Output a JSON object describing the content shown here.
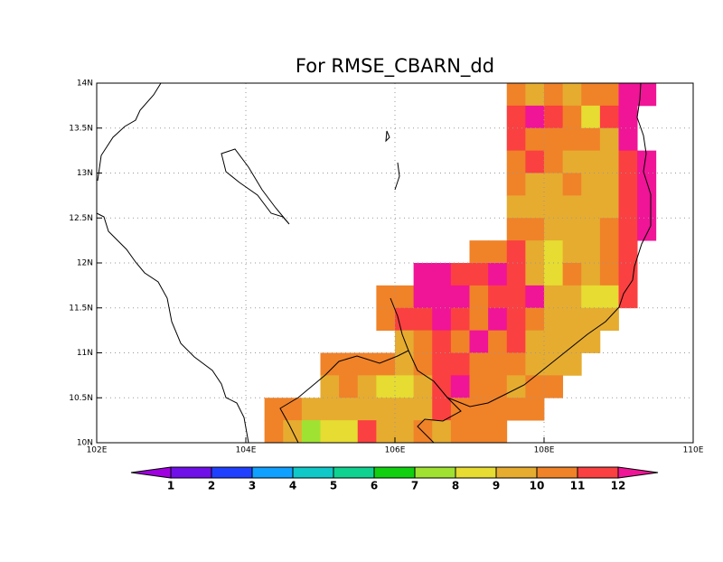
{
  "chart_data": {
    "type": "map",
    "title": "For RMSE_CBARN_dd",
    "xlim": [
      102,
      110
    ],
    "ylim": [
      10,
      14
    ],
    "xticks": [
      {
        "value": 102,
        "label": "102E"
      },
      {
        "value": 104,
        "label": "104E"
      },
      {
        "value": 106,
        "label": "106E"
      },
      {
        "value": 108,
        "label": "108E"
      },
      {
        "value": 110,
        "label": "110E"
      }
    ],
    "yticks": [
      {
        "value": 10,
        "label": "10N"
      },
      {
        "value": 10.5,
        "label": "10.5N"
      },
      {
        "value": 11,
        "label": "11N"
      },
      {
        "value": 11.5,
        "label": "11.5N"
      },
      {
        "value": 12,
        "label": "12N"
      },
      {
        "value": 12.5,
        "label": "12.5N"
      },
      {
        "value": 13,
        "label": "13N"
      },
      {
        "value": 13.5,
        "label": "13.5N"
      },
      {
        "value": 14,
        "label": "14N"
      }
    ],
    "grid": true,
    "x": [
      104.375,
      104.625,
      104.875,
      105.125,
      105.375,
      105.625,
      105.875,
      106.125,
      106.375,
      106.625,
      106.875,
      107.125,
      107.375,
      107.625,
      107.875,
      108.125,
      108.375,
      108.625,
      108.875,
      109.125,
      109.375
    ],
    "y": [
      13.875,
      13.625,
      13.375,
      13.125,
      12.875,
      12.625,
      12.375,
      12.125,
      11.875,
      11.625,
      11.375,
      11.125,
      10.875,
      10.625,
      10.375,
      10.125
    ],
    "values": [
      [
        null,
        null,
        null,
        null,
        null,
        null,
        null,
        null,
        null,
        null,
        null,
        null,
        null,
        10.5,
        9.5,
        10.5,
        9.5,
        10.5,
        10.5,
        12.5,
        12.5
      ],
      [
        null,
        null,
        null,
        null,
        null,
        null,
        null,
        null,
        null,
        null,
        null,
        null,
        null,
        11.5,
        12.5,
        11.5,
        10.5,
        8.5,
        11.5,
        12.5,
        null
      ],
      [
        null,
        null,
        null,
        null,
        null,
        null,
        null,
        null,
        null,
        null,
        null,
        null,
        null,
        11.5,
        10.5,
        10.5,
        10.5,
        10.5,
        9.5,
        12.5,
        null
      ],
      [
        null,
        null,
        null,
        null,
        null,
        null,
        null,
        null,
        null,
        null,
        null,
        null,
        null,
        10.5,
        11.5,
        10.5,
        9.5,
        9.5,
        9.5,
        11.5,
        12.5
      ],
      [
        null,
        null,
        null,
        null,
        null,
        null,
        null,
        null,
        null,
        null,
        null,
        null,
        null,
        10.5,
        9.5,
        9.5,
        10.5,
        9.5,
        9.5,
        11.5,
        12.5
      ],
      [
        null,
        null,
        null,
        null,
        null,
        null,
        null,
        null,
        null,
        null,
        null,
        null,
        null,
        9.5,
        9.5,
        9.5,
        9.5,
        9.5,
        9.5,
        11.5,
        12.5
      ],
      [
        null,
        null,
        null,
        null,
        null,
        null,
        null,
        null,
        null,
        null,
        null,
        null,
        null,
        10.5,
        10.5,
        9.5,
        9.5,
        9.5,
        10.5,
        11.5,
        12.5
      ],
      [
        null,
        null,
        null,
        null,
        null,
        null,
        null,
        null,
        null,
        null,
        null,
        10.5,
        10.5,
        11.5,
        9.5,
        8.5,
        9.5,
        9.5,
        10.5,
        11.5,
        null
      ],
      [
        null,
        null,
        null,
        null,
        null,
        null,
        null,
        null,
        12.5,
        12.5,
        11.5,
        11.5,
        12.5,
        11.5,
        9.5,
        8.5,
        10.5,
        9.5,
        10.5,
        11.5,
        null
      ],
      [
        null,
        null,
        null,
        null,
        null,
        null,
        10.5,
        10.5,
        12.5,
        12.5,
        12.5,
        10.5,
        11.5,
        11.5,
        12.5,
        9.5,
        9.5,
        8.5,
        8.5,
        11.5,
        null
      ],
      [
        null,
        null,
        null,
        null,
        null,
        null,
        10.5,
        11.5,
        11.5,
        12.5,
        11.5,
        10.5,
        12.5,
        11.5,
        10.5,
        9.5,
        9.5,
        9.5,
        9.5,
        null,
        null
      ],
      [
        null,
        null,
        null,
        null,
        null,
        null,
        null,
        9.5,
        10.5,
        11.5,
        10.5,
        12.5,
        10.5,
        11.5,
        9.5,
        9.5,
        9.5,
        9.5,
        null,
        null,
        null
      ],
      [
        null,
        null,
        null,
        10.5,
        10.5,
        10.5,
        10.5,
        9.5,
        10.5,
        11.5,
        11.5,
        10.5,
        10.5,
        10.5,
        9.5,
        9.5,
        9.5,
        null,
        null,
        null,
        null
      ],
      [
        null,
        null,
        null,
        9.5,
        10.5,
        9.5,
        8.5,
        8.5,
        9.5,
        11.5,
        12.5,
        10.5,
        10.5,
        9.5,
        10.5,
        10.5,
        null,
        null,
        null,
        null,
        null
      ],
      [
        10.5,
        10.5,
        9.5,
        9.5,
        9.5,
        9.5,
        9.5,
        9.5,
        9.5,
        11.5,
        10.5,
        10.5,
        10.5,
        10.5,
        10.5,
        null,
        null,
        null,
        null,
        null,
        null
      ],
      [
        10.5,
        9.5,
        7.5,
        8.5,
        8.5,
        11.5,
        9.5,
        9.5,
        10.5,
        9.5,
        10.5,
        10.5,
        10.5,
        null,
        null,
        null,
        null,
        null,
        null,
        null,
        null
      ]
    ],
    "colorbar": {
      "levels": [
        1,
        2,
        3,
        4,
        5,
        6,
        7,
        8,
        9,
        10,
        11,
        12
      ],
      "colors": [
        "#a000e0",
        "#7010e8",
        "#2040ff",
        "#10a0ff",
        "#10c8c8",
        "#10d290",
        "#10d010",
        "#a0e232",
        "#e6dc32",
        "#e6ac30",
        "#f08228",
        "#fa4040",
        "#f01496"
      ]
    }
  }
}
